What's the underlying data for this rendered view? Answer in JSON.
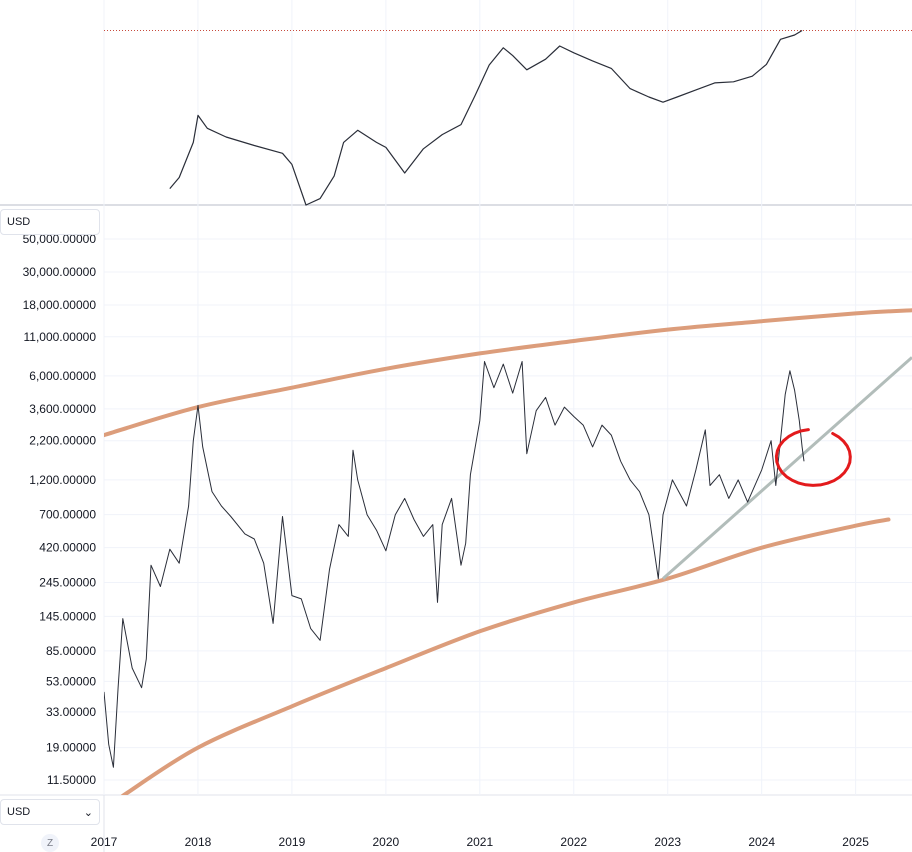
{
  "currency": {
    "top_label": "USD",
    "bottom_label": "USD",
    "dropdown_icon": "chevron-down-icon"
  },
  "timezone_button": "Z",
  "colors": {
    "price_line": "#2a2e39",
    "channel": "#dc9d7b",
    "trendline": "#b2bdba",
    "circle": "#e31a1c",
    "candle_up": "#1f8a5a",
    "candle_down": "#2a2e39",
    "grid": "#f0f3fa",
    "ref_line": "#c74b3d"
  },
  "chart_data": [
    {
      "type": "line",
      "name": "upper-pane-price",
      "scale": "log",
      "x_range": [
        2017.0,
        2025.6
      ],
      "y_range": [
        1,
        150
      ],
      "points": [
        [
          2017.7,
          1.6
        ],
        [
          2017.8,
          2.2
        ],
        [
          2017.95,
          6.0
        ],
        [
          2018.0,
          13.0
        ],
        [
          2018.1,
          9.0
        ],
        [
          2018.3,
          7.0
        ],
        [
          2018.6,
          5.5
        ],
        [
          2018.9,
          4.4
        ],
        [
          2019.0,
          3.2
        ],
        [
          2019.15,
          1.0
        ],
        [
          2019.3,
          1.2
        ],
        [
          2019.45,
          2.3
        ],
        [
          2019.55,
          6.0
        ],
        [
          2019.7,
          8.5
        ],
        [
          2019.9,
          6.0
        ],
        [
          2020.0,
          5.2
        ],
        [
          2020.2,
          2.5
        ],
        [
          2020.4,
          5.0
        ],
        [
          2020.6,
          7.5
        ],
        [
          2020.8,
          10.0
        ],
        [
          2020.95,
          23.0
        ],
        [
          2021.1,
          55.0
        ],
        [
          2021.25,
          90.0
        ],
        [
          2021.35,
          72.0
        ],
        [
          2021.5,
          48.0
        ],
        [
          2021.7,
          65.0
        ],
        [
          2021.85,
          95.0
        ],
        [
          2022.0,
          78.0
        ],
        [
          2022.2,
          62.0
        ],
        [
          2022.4,
          50.0
        ],
        [
          2022.6,
          28.0
        ],
        [
          2022.8,
          22.0
        ],
        [
          2022.95,
          19.0
        ],
        [
          2023.1,
          22.0
        ],
        [
          2023.3,
          27.0
        ],
        [
          2023.5,
          33.0
        ],
        [
          2023.7,
          34.0
        ],
        [
          2023.9,
          40.0
        ],
        [
          2024.05,
          56.0
        ],
        [
          2024.2,
          115.0
        ],
        [
          2024.35,
          130.0
        ],
        [
          2024.43,
          148.0
        ]
      ],
      "reference_level": 148
    },
    {
      "type": "line",
      "name": "lower-pane-price",
      "scale": "log",
      "currency": "USD",
      "x_range": [
        2017.0,
        2025.6
      ],
      "y_range": [
        9,
        55000
      ],
      "tick_labels": [
        "50,000.00000",
        "30,000.00000",
        "18,000.00000",
        "11,000.00000",
        "6,000.00000",
        "3,600.00000",
        "2,200.00000",
        "1,200.00000",
        "700.00000",
        "420.00000",
        "245.00000",
        "145.00000",
        "85.00000",
        "53.00000",
        "33.00000",
        "19.00000",
        "11.50000"
      ],
      "tick_values": [
        50000,
        30000,
        18000,
        11000,
        6000,
        3600,
        2200,
        1200,
        700,
        420,
        245,
        145,
        85,
        53,
        33,
        19,
        11.5
      ],
      "x_tick_labels": [
        "2017",
        "2018",
        "2019",
        "2020",
        "2021",
        "2022",
        "2023",
        "2024",
        "2025"
      ],
      "x_tick_values": [
        2017,
        2018,
        2019,
        2020,
        2021,
        2022,
        2023,
        2024,
        2025
      ],
      "points": [
        [
          2017.0,
          45
        ],
        [
          2017.05,
          20
        ],
        [
          2017.1,
          14
        ],
        [
          2017.15,
          48
        ],
        [
          2017.2,
          140
        ],
        [
          2017.3,
          65
        ],
        [
          2017.4,
          48
        ],
        [
          2017.45,
          75
        ],
        [
          2017.5,
          320
        ],
        [
          2017.6,
          230
        ],
        [
          2017.7,
          410
        ],
        [
          2017.8,
          330
        ],
        [
          2017.9,
          800
        ],
        [
          2017.95,
          2200
        ],
        [
          2018.0,
          3800
        ],
        [
          2018.05,
          2000
        ],
        [
          2018.15,
          1000
        ],
        [
          2018.25,
          800
        ],
        [
          2018.35,
          680
        ],
        [
          2018.5,
          520
        ],
        [
          2018.6,
          480
        ],
        [
          2018.7,
          330
        ],
        [
          2018.8,
          130
        ],
        [
          2018.9,
          680
        ],
        [
          2019.0,
          200
        ],
        [
          2019.1,
          190
        ],
        [
          2019.2,
          120
        ],
        [
          2019.3,
          100
        ],
        [
          2019.4,
          300
        ],
        [
          2019.5,
          600
        ],
        [
          2019.6,
          500
        ],
        [
          2019.65,
          1900
        ],
        [
          2019.7,
          1200
        ],
        [
          2019.8,
          700
        ],
        [
          2019.9,
          550
        ],
        [
          2020.0,
          400
        ],
        [
          2020.1,
          700
        ],
        [
          2020.2,
          900
        ],
        [
          2020.3,
          650
        ],
        [
          2020.4,
          500
        ],
        [
          2020.5,
          600
        ],
        [
          2020.55,
          180
        ],
        [
          2020.6,
          600
        ],
        [
          2020.7,
          900
        ],
        [
          2020.8,
          320
        ],
        [
          2020.85,
          450
        ],
        [
          2020.9,
          1300
        ],
        [
          2021.0,
          3000
        ],
        [
          2021.05,
          7500
        ],
        [
          2021.15,
          5000
        ],
        [
          2021.25,
          7200
        ],
        [
          2021.35,
          4600
        ],
        [
          2021.45,
          7500
        ],
        [
          2021.5,
          1800
        ],
        [
          2021.6,
          3500
        ],
        [
          2021.7,
          4300
        ],
        [
          2021.8,
          2800
        ],
        [
          2021.9,
          3700
        ],
        [
          2022.0,
          3200
        ],
        [
          2022.1,
          2800
        ],
        [
          2022.2,
          2000
        ],
        [
          2022.3,
          2800
        ],
        [
          2022.4,
          2400
        ],
        [
          2022.5,
          1600
        ],
        [
          2022.6,
          1200
        ],
        [
          2022.7,
          1000
        ],
        [
          2022.8,
          700
        ],
        [
          2022.9,
          260
        ],
        [
          2022.95,
          700
        ],
        [
          2023.05,
          1200
        ],
        [
          2023.2,
          800
        ],
        [
          2023.3,
          1400
        ],
        [
          2023.4,
          2600
        ],
        [
          2023.45,
          1100
        ],
        [
          2023.55,
          1300
        ],
        [
          2023.65,
          900
        ],
        [
          2023.75,
          1200
        ],
        [
          2023.85,
          850
        ],
        [
          2024.0,
          1400
        ],
        [
          2024.1,
          2200
        ],
        [
          2024.15,
          1100
        ],
        [
          2024.25,
          4500
        ],
        [
          2024.3,
          6500
        ],
        [
          2024.35,
          4800
        ],
        [
          2024.4,
          3000
        ],
        [
          2024.43,
          2000
        ],
        [
          2024.45,
          1600
        ]
      ],
      "channel_upper": [
        [
          2017.0,
          2400
        ],
        [
          2018.0,
          3700
        ],
        [
          2019.0,
          5000
        ],
        [
          2020.0,
          6700
        ],
        [
          2021.0,
          8500
        ],
        [
          2022.0,
          10300
        ],
        [
          2023.0,
          12300
        ],
        [
          2024.0,
          14000
        ],
        [
          2025.0,
          15800
        ],
        [
          2025.6,
          16600
        ]
      ],
      "channel_lower": [
        [
          2017.2,
          9
        ],
        [
          2018.0,
          19
        ],
        [
          2019.0,
          36
        ],
        [
          2020.0,
          65
        ],
        [
          2021.0,
          115
        ],
        [
          2022.0,
          180
        ],
        [
          2023.0,
          260
        ],
        [
          2024.0,
          420
        ],
        [
          2025.0,
          590
        ],
        [
          2025.35,
          650
        ]
      ],
      "trendline": [
        [
          2022.95,
          260
        ],
        [
          2025.6,
          8000
        ]
      ],
      "highlight_circle": {
        "center": [
          2024.55,
          1700
        ],
        "label": ""
      }
    }
  ]
}
